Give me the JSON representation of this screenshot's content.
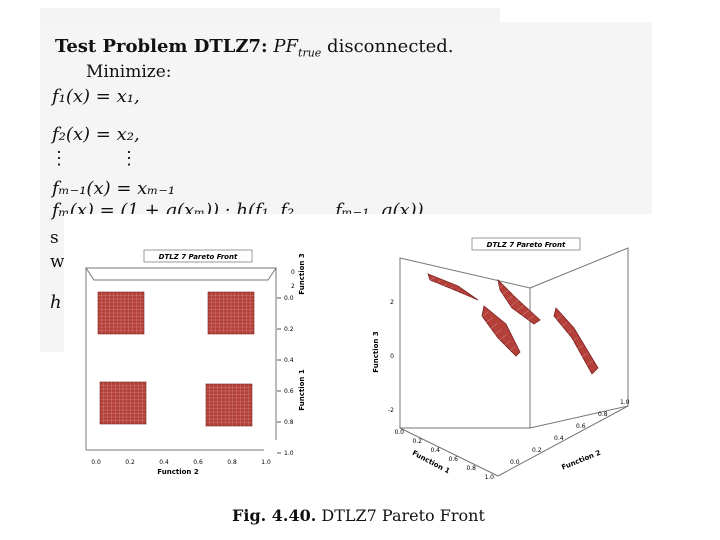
{
  "doc": {
    "title_bold": "Test Problem DTLZ7:",
    "title_pf": "PF",
    "title_pf_sub": "true",
    "title_rest": "disconnected.",
    "minimize": "Minimize:",
    "eq_f1": "f₁(x) = x₁,",
    "eq_f2": "f₂(x) = x₂,",
    "dots": "⋮",
    "eq_fm1": "fₘ₋₁(x) = xₘ₋₁",
    "eq_fm": "fₘ(x) = (1 + g(xₘ)) · h(f₁, f₂, …, fₘ₋₁, g(x))",
    "partial_s": "s",
    "partial_w": "w",
    "partial_h": "h"
  },
  "figure": {
    "left_plot": {
      "title": "DTLZ 7 Pareto Front",
      "xlabel": "Function 2",
      "ylabel": "Function 1",
      "zlabel": "Function 3",
      "x_ticks": [
        "0.0",
        "0.2",
        "0.4",
        "0.6",
        "0.8",
        "1.0"
      ],
      "y_ticks": [
        "0.0",
        "0.2",
        "0.4",
        "0.6",
        "0.8",
        "1.0"
      ],
      "z_ticks": [
        "2",
        "0"
      ]
    },
    "right_plot": {
      "title": "DTLZ 7 Pareto Front",
      "xlabel": "Function 1",
      "ylabel": "Function 2",
      "zlabel": "Function 3",
      "x_ticks": [
        "0.0",
        "0.2",
        "0.4",
        "0.6",
        "0.8",
        "1.0"
      ],
      "y_ticks": [
        "0.0",
        "0.2",
        "0.4",
        "0.6",
        "0.8",
        "1.0"
      ],
      "z_ticks": [
        "2",
        "0",
        "-2"
      ]
    },
    "surface_color": "#b5403a",
    "caption_label": "Fig. 4.40.",
    "caption_text": "DTLZ7 Pareto Front"
  }
}
